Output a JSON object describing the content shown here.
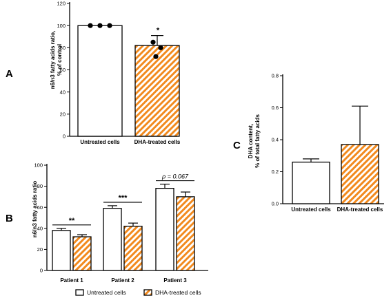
{
  "colors": {
    "hatch": "#f28a1e",
    "bar_outline": "#000000",
    "background": "#ffffff"
  },
  "legend": {
    "untreated_label": "Untreated cells",
    "dha_label": "DHA-treated cells"
  },
  "chart_data": [
    {
      "panel": "A",
      "type": "bar",
      "categories": [
        "Untreated cells",
        "DHA-treated cells"
      ],
      "values": [
        100,
        82
      ],
      "errors": [
        0,
        9
      ],
      "points": [
        [
          100,
          100,
          100
        ],
        [
          85,
          80,
          72
        ]
      ],
      "significance": [
        "",
        "*"
      ],
      "ylabel_line1": "n6/n3 fatty acids ratio,",
      "ylabel_line2": "% of control",
      "ylim": [
        0,
        120
      ],
      "yticks": [
        0,
        20,
        40,
        60,
        80,
        100,
        120
      ],
      "grid": false
    },
    {
      "panel": "B",
      "type": "bar",
      "categories": [
        "Patient 1",
        "Patient 2",
        "Patient 3"
      ],
      "series": [
        {
          "name": "Untreated cells",
          "values": [
            38,
            59,
            78
          ],
          "errors": [
            2,
            2.5,
            4
          ]
        },
        {
          "name": "DHA-treated cells",
          "values": [
            32,
            42,
            70
          ],
          "errors": [
            2,
            3,
            4.5
          ]
        }
      ],
      "annotations": [
        "**",
        "***",
        "ρ = 0.067"
      ],
      "ylabel": "n6/n3 fatty acids ratio",
      "ylim": [
        0,
        100
      ],
      "yticks": [
        0,
        20,
        40,
        60,
        80,
        100
      ],
      "legend_position": "bottom",
      "grid": false
    },
    {
      "panel": "C",
      "type": "bar",
      "categories": [
        "Untreated cells",
        "DHA-treated cells"
      ],
      "values": [
        0.26,
        0.37
      ],
      "errors": [
        0.02,
        0.24
      ],
      "ylabel_line1": "DHA content,",
      "ylabel_line2": "% of total fatty acids",
      "ylim": [
        0,
        0.8
      ],
      "yticks": [
        "0.0",
        "0.2",
        "0.4",
        "0.6",
        "0.8"
      ],
      "grid": false
    }
  ]
}
